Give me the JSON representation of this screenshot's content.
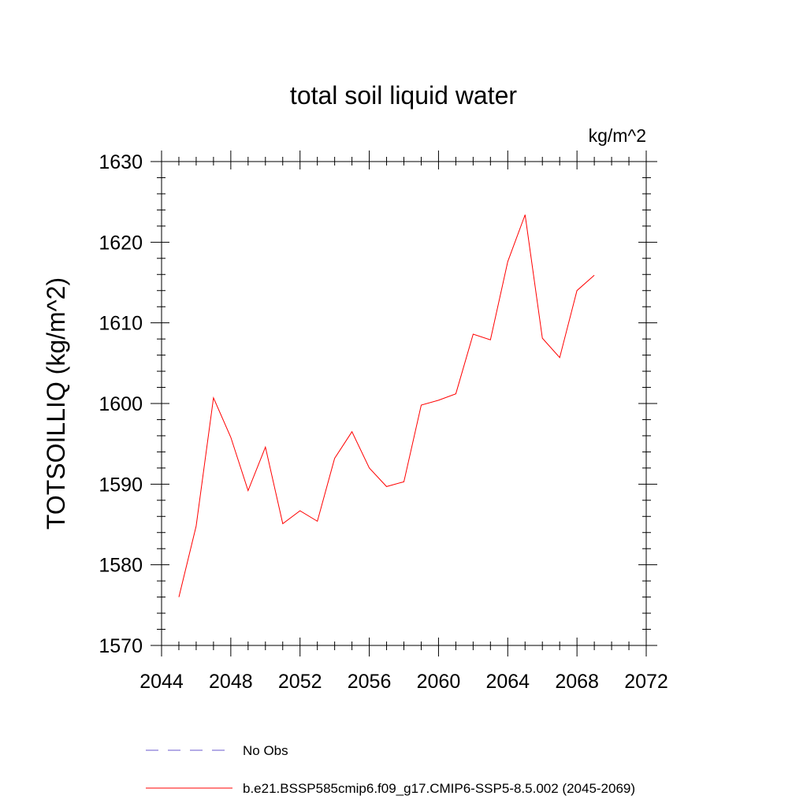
{
  "chart_data": {
    "type": "line",
    "title": "total soil liquid water",
    "units": "kg/m^2",
    "xlabel": "",
    "ylabel": "TOTSOILLIQ  (kg/m^2)",
    "xlim": [
      2044,
      2072
    ],
    "ylim": [
      1570,
      1630
    ],
    "x_ticks": [
      2044,
      2048,
      2052,
      2056,
      2060,
      2064,
      2068,
      2072
    ],
    "y_ticks": [
      1570,
      1580,
      1590,
      1600,
      1610,
      1620,
      1630
    ],
    "grid": false,
    "legend_position": "bottom",
    "series": [
      {
        "name": "No Obs",
        "color": "#6a5acd",
        "style": "dashed",
        "x": [],
        "values": []
      },
      {
        "name": "b.e21.BSSP585cmip6.f09_g17.CMIP6-SSP5-8.5.002 (2045-2069)",
        "color": "#ff0000",
        "style": "solid",
        "x": [
          2045,
          2046,
          2047,
          2048,
          2049,
          2050,
          2051,
          2052,
          2053,
          2054,
          2055,
          2056,
          2057,
          2058,
          2059,
          2060,
          2061,
          2062,
          2063,
          2064,
          2065,
          2066,
          2067,
          2068,
          2069
        ],
        "values": [
          1576.0,
          1584.8,
          1600.7,
          1595.8,
          1589.2,
          1594.6,
          1585.1,
          1586.7,
          1585.4,
          1593.2,
          1596.5,
          1592.0,
          1589.7,
          1590.3,
          1599.8,
          1600.4,
          1601.2,
          1608.6,
          1607.9,
          1617.6,
          1623.4,
          1608.1,
          1605.7,
          1614.0,
          1615.9
        ]
      }
    ]
  }
}
